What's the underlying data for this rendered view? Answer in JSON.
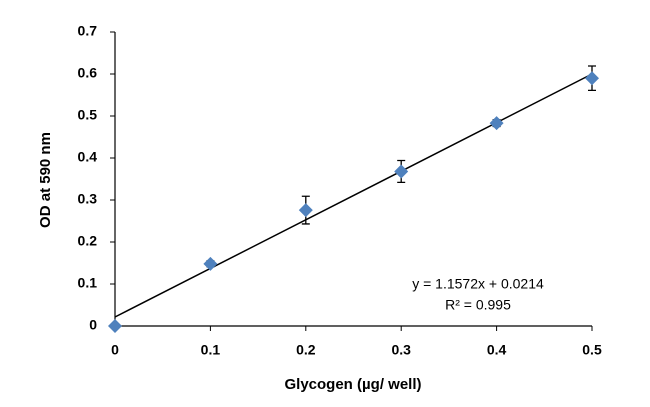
{
  "chart_data": {
    "type": "scatter",
    "x_label": "Glycogen (µg/ well)",
    "y_label": "OD at 590 nm",
    "x": [
      0,
      0.1,
      0.2,
      0.3,
      0.4,
      0.5
    ],
    "series": [
      {
        "color": "#4f81bd",
        "values": [
          0,
          0.148,
          0.276,
          0.368,
          0.483,
          0.59
        ],
        "errors": [
          0,
          0.007,
          0.033,
          0.026,
          0.008,
          0.029
        ]
      }
    ],
    "trendline": {
      "slope": 1.1572,
      "intercept": 0.0214,
      "r2": 0.995,
      "color": "#000000"
    },
    "annotations": [
      "y = 1.1572x + 0.0214",
      "R² = 0.995"
    ],
    "xlim": [
      0,
      0.5
    ],
    "ylim": [
      0,
      0.7
    ],
    "xticks": [
      0,
      0.1,
      0.2,
      0.3,
      0.4,
      0.5
    ],
    "yticks": [
      0,
      0.1,
      0.2,
      0.3,
      0.4,
      0.5,
      0.6,
      0.7
    ],
    "grid": false
  }
}
